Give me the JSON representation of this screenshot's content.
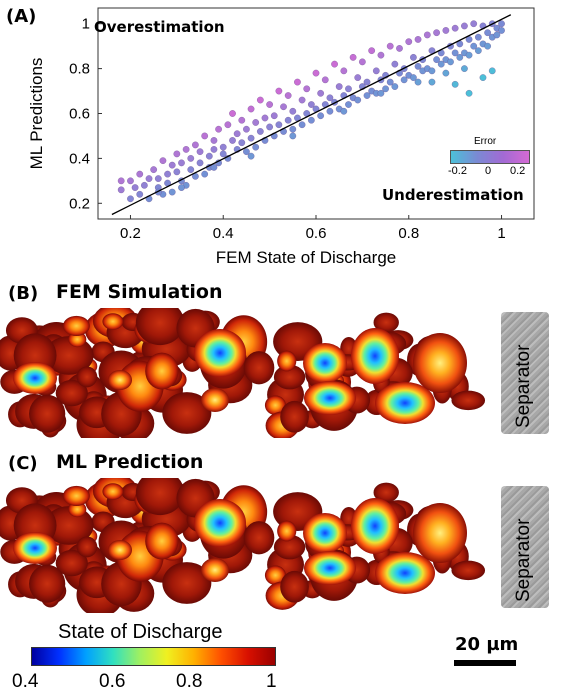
{
  "panel_a": {
    "label": "(A)",
    "overestimation": "Overestimation",
    "underestimation": "Underestimation",
    "error_label": "Error",
    "error_ticks": [
      "-0.2",
      "0",
      "0.2"
    ]
  },
  "panel_b": {
    "label": "(B)",
    "title": "FEM Simulation",
    "separator": "Separator"
  },
  "panel_c": {
    "label": "(C)",
    "title": "ML Prediction",
    "separator": "Separator"
  },
  "colorbar": {
    "label": "State of Discharge",
    "ticks": [
      "0.4",
      "0.6",
      "0.8",
      "1"
    ]
  },
  "scale_bar": {
    "label": "20 µm"
  },
  "colors": {
    "error_low": "#4fb8d8",
    "error_mid": "#8a6fd0",
    "error_high": "#c86ad8",
    "fit_line": "#000000"
  },
  "chart_data": {
    "type": "scatter",
    "title": "",
    "xlabel": "FEM State of Discharge",
    "ylabel": "ML Predictions",
    "xlim": [
      0.13,
      1.07
    ],
    "ylim": [
      0.13,
      1.07
    ],
    "xticks": [
      0.2,
      0.4,
      0.6,
      0.8,
      1
    ],
    "yticks": [
      0.2,
      0.4,
      0.6,
      0.8,
      1
    ],
    "xtick_labels": [
      "0.2",
      "0.4",
      "0.6",
      "0.8",
      "1"
    ],
    "ytick_labels": [
      "0.2",
      "0.4",
      "0.6",
      "0.8",
      "1"
    ],
    "grid": false,
    "colorbar": "Error",
    "fit_line": {
      "x": [
        0.16,
        1.02
      ],
      "y": [
        0.15,
        1.04
      ]
    },
    "points": [
      [
        0.18,
        0.3
      ],
      [
        0.18,
        0.26
      ],
      [
        0.2,
        0.22
      ],
      [
        0.2,
        0.3
      ],
      [
        0.21,
        0.27
      ],
      [
        0.22,
        0.33
      ],
      [
        0.22,
        0.24
      ],
      [
        0.23,
        0.28
      ],
      [
        0.24,
        0.31
      ],
      [
        0.24,
        0.22
      ],
      [
        0.25,
        0.35
      ],
      [
        0.26,
        0.27
      ],
      [
        0.26,
        0.31
      ],
      [
        0.27,
        0.39
      ],
      [
        0.27,
        0.24
      ],
      [
        0.28,
        0.33
      ],
      [
        0.28,
        0.29
      ],
      [
        0.29,
        0.37
      ],
      [
        0.29,
        0.25
      ],
      [
        0.3,
        0.42
      ],
      [
        0.3,
        0.34
      ],
      [
        0.31,
        0.3
      ],
      [
        0.31,
        0.38
      ],
      [
        0.32,
        0.44
      ],
      [
        0.32,
        0.28
      ],
      [
        0.33,
        0.35
      ],
      [
        0.33,
        0.4
      ],
      [
        0.34,
        0.46
      ],
      [
        0.34,
        0.32
      ],
      [
        0.35,
        0.38
      ],
      [
        0.35,
        0.43
      ],
      [
        0.36,
        0.5
      ],
      [
        0.36,
        0.33
      ],
      [
        0.37,
        0.41
      ],
      [
        0.37,
        0.36
      ],
      [
        0.38,
        0.48
      ],
      [
        0.38,
        0.44
      ],
      [
        0.39,
        0.53
      ],
      [
        0.39,
        0.38
      ],
      [
        0.4,
        0.45
      ],
      [
        0.4,
        0.42
      ],
      [
        0.41,
        0.55
      ],
      [
        0.41,
        0.4
      ],
      [
        0.42,
        0.48
      ],
      [
        0.42,
        0.6
      ],
      [
        0.43,
        0.44
      ],
      [
        0.43,
        0.51
      ],
      [
        0.44,
        0.47
      ],
      [
        0.44,
        0.57
      ],
      [
        0.45,
        0.43
      ],
      [
        0.45,
        0.53
      ],
      [
        0.46,
        0.62
      ],
      [
        0.46,
        0.49
      ],
      [
        0.47,
        0.45
      ],
      [
        0.47,
        0.56
      ],
      [
        0.48,
        0.52
      ],
      [
        0.48,
        0.66
      ],
      [
        0.49,
        0.48
      ],
      [
        0.49,
        0.58
      ],
      [
        0.5,
        0.54
      ],
      [
        0.5,
        0.64
      ],
      [
        0.51,
        0.5
      ],
      [
        0.51,
        0.59
      ],
      [
        0.52,
        0.7
      ],
      [
        0.52,
        0.55
      ],
      [
        0.53,
        0.52
      ],
      [
        0.53,
        0.63
      ],
      [
        0.54,
        0.57
      ],
      [
        0.54,
        0.68
      ],
      [
        0.55,
        0.53
      ],
      [
        0.55,
        0.61
      ],
      [
        0.56,
        0.74
      ],
      [
        0.56,
        0.58
      ],
      [
        0.57,
        0.55
      ],
      [
        0.57,
        0.66
      ],
      [
        0.58,
        0.6
      ],
      [
        0.58,
        0.71
      ],
      [
        0.59,
        0.57
      ],
      [
        0.59,
        0.64
      ],
      [
        0.6,
        0.78
      ],
      [
        0.6,
        0.62
      ],
      [
        0.61,
        0.59
      ],
      [
        0.61,
        0.69
      ],
      [
        0.62,
        0.64
      ],
      [
        0.62,
        0.75
      ],
      [
        0.63,
        0.61
      ],
      [
        0.63,
        0.67
      ],
      [
        0.64,
        0.82
      ],
      [
        0.64,
        0.65
      ],
      [
        0.65,
        0.62
      ],
      [
        0.65,
        0.72
      ],
      [
        0.66,
        0.68
      ],
      [
        0.66,
        0.79
      ],
      [
        0.67,
        0.64
      ],
      [
        0.67,
        0.71
      ],
      [
        0.68,
        0.85
      ],
      [
        0.68,
        0.67
      ],
      [
        0.69,
        0.66
      ],
      [
        0.69,
        0.76
      ],
      [
        0.7,
        0.72
      ],
      [
        0.7,
        0.83
      ],
      [
        0.71,
        0.68
      ],
      [
        0.71,
        0.74
      ],
      [
        0.72,
        0.88
      ],
      [
        0.72,
        0.7
      ],
      [
        0.73,
        0.69
      ],
      [
        0.73,
        0.79
      ],
      [
        0.74,
        0.75
      ],
      [
        0.74,
        0.86
      ],
      [
        0.75,
        0.71
      ],
      [
        0.75,
        0.77
      ],
      [
        0.76,
        0.9
      ],
      [
        0.76,
        0.74
      ],
      [
        0.77,
        0.72
      ],
      [
        0.77,
        0.82
      ],
      [
        0.78,
        0.78
      ],
      [
        0.78,
        0.89
      ],
      [
        0.79,
        0.75
      ],
      [
        0.79,
        0.8
      ],
      [
        0.8,
        0.92
      ],
      [
        0.8,
        0.77
      ],
      [
        0.81,
        0.76
      ],
      [
        0.81,
        0.85
      ],
      [
        0.82,
        0.81
      ],
      [
        0.82,
        0.93
      ],
      [
        0.83,
        0.79
      ],
      [
        0.83,
        0.84
      ],
      [
        0.84,
        0.95
      ],
      [
        0.84,
        0.8
      ],
      [
        0.85,
        0.79
      ],
      [
        0.85,
        0.88
      ],
      [
        0.86,
        0.84
      ],
      [
        0.86,
        0.96
      ],
      [
        0.87,
        0.82
      ],
      [
        0.87,
        0.87
      ],
      [
        0.88,
        0.97
      ],
      [
        0.88,
        0.84
      ],
      [
        0.89,
        0.83
      ],
      [
        0.89,
        0.9
      ],
      [
        0.9,
        0.87
      ],
      [
        0.9,
        0.98
      ],
      [
        0.91,
        0.85
      ],
      [
        0.91,
        0.91
      ],
      [
        0.92,
        0.99
      ],
      [
        0.92,
        0.87
      ],
      [
        0.93,
        0.86
      ],
      [
        0.93,
        0.93
      ],
      [
        0.94,
        0.9
      ],
      [
        0.94,
        1.0
      ],
      [
        0.95,
        0.88
      ],
      [
        0.95,
        0.94
      ],
      [
        0.96,
        0.99
      ],
      [
        0.96,
        0.91
      ],
      [
        0.97,
        0.9
      ],
      [
        0.97,
        0.96
      ],
      [
        0.98,
        0.94
      ],
      [
        0.98,
        1.0
      ],
      [
        0.99,
        0.95
      ],
      [
        0.99,
        0.98
      ],
      [
        1.0,
        0.97
      ],
      [
        1.0,
        1.0
      ],
      [
        0.9,
        0.73
      ],
      [
        0.93,
        0.69
      ],
      [
        0.96,
        0.76
      ],
      [
        0.98,
        0.79
      ],
      [
        0.92,
        0.8
      ],
      [
        0.85,
        0.74
      ],
      [
        0.88,
        0.78
      ],
      [
        0.38,
        0.36
      ],
      [
        0.31,
        0.27
      ],
      [
        0.26,
        0.25
      ],
      [
        0.46,
        0.41
      ],
      [
        0.55,
        0.5
      ],
      [
        0.66,
        0.61
      ],
      [
        0.74,
        0.69
      ],
      [
        0.82,
        0.74
      ]
    ]
  }
}
